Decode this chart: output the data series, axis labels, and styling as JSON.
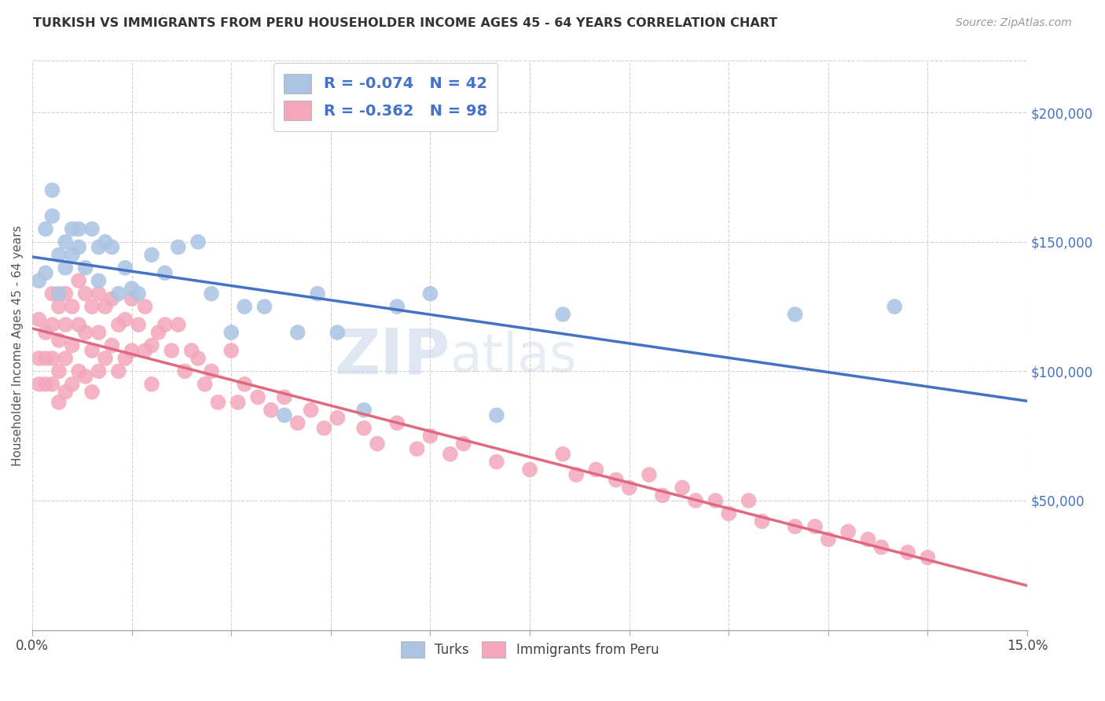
{
  "title": "TURKISH VS IMMIGRANTS FROM PERU HOUSEHOLDER INCOME AGES 45 - 64 YEARS CORRELATION CHART",
  "source": "Source: ZipAtlas.com",
  "ylabel": "Householder Income Ages 45 - 64 years",
  "ytick_values": [
    50000,
    100000,
    150000,
    200000
  ],
  "legend_turks_r": "-0.074",
  "legend_turks_n": "42",
  "legend_peru_r": "-0.362",
  "legend_peru_n": "98",
  "turks_color": "#aac4e2",
  "turks_line_color": "#4472c4",
  "peru_color": "#f4a7bc",
  "peru_line_color": "#e06880",
  "watermark": "ZIPatlas",
  "turks_label": "Turks",
  "peru_label": "Immigrants from Peru",
  "turks_x": [
    0.001,
    0.002,
    0.002,
    0.003,
    0.003,
    0.004,
    0.004,
    0.005,
    0.005,
    0.006,
    0.006,
    0.007,
    0.007,
    0.008,
    0.009,
    0.01,
    0.01,
    0.011,
    0.012,
    0.013,
    0.014,
    0.015,
    0.016,
    0.018,
    0.02,
    0.022,
    0.025,
    0.027,
    0.03,
    0.032,
    0.035,
    0.038,
    0.04,
    0.043,
    0.046,
    0.05,
    0.055,
    0.06,
    0.07,
    0.08,
    0.115,
    0.13
  ],
  "turks_y": [
    135000,
    155000,
    138000,
    160000,
    170000,
    145000,
    130000,
    150000,
    140000,
    155000,
    145000,
    155000,
    148000,
    140000,
    155000,
    148000,
    135000,
    150000,
    148000,
    130000,
    140000,
    132000,
    130000,
    145000,
    138000,
    148000,
    150000,
    130000,
    115000,
    125000,
    125000,
    83000,
    115000,
    130000,
    115000,
    85000,
    125000,
    130000,
    83000,
    122000,
    122000,
    125000
  ],
  "peru_x": [
    0.001,
    0.001,
    0.001,
    0.002,
    0.002,
    0.002,
    0.003,
    0.003,
    0.003,
    0.003,
    0.004,
    0.004,
    0.004,
    0.004,
    0.005,
    0.005,
    0.005,
    0.005,
    0.006,
    0.006,
    0.006,
    0.007,
    0.007,
    0.007,
    0.008,
    0.008,
    0.008,
    0.009,
    0.009,
    0.009,
    0.01,
    0.01,
    0.01,
    0.011,
    0.011,
    0.012,
    0.012,
    0.013,
    0.013,
    0.014,
    0.014,
    0.015,
    0.015,
    0.016,
    0.017,
    0.017,
    0.018,
    0.018,
    0.019,
    0.02,
    0.021,
    0.022,
    0.023,
    0.024,
    0.025,
    0.026,
    0.027,
    0.028,
    0.03,
    0.031,
    0.032,
    0.034,
    0.036,
    0.038,
    0.04,
    0.042,
    0.044,
    0.046,
    0.05,
    0.052,
    0.055,
    0.058,
    0.06,
    0.063,
    0.065,
    0.07,
    0.075,
    0.08,
    0.082,
    0.085,
    0.088,
    0.09,
    0.093,
    0.095,
    0.098,
    0.1,
    0.103,
    0.105,
    0.108,
    0.11,
    0.115,
    0.118,
    0.12,
    0.123,
    0.126,
    0.128,
    0.132,
    0.135
  ],
  "peru_y": [
    120000,
    105000,
    95000,
    115000,
    105000,
    95000,
    130000,
    118000,
    105000,
    95000,
    125000,
    112000,
    100000,
    88000,
    130000,
    118000,
    105000,
    92000,
    125000,
    110000,
    95000,
    135000,
    118000,
    100000,
    130000,
    115000,
    98000,
    125000,
    108000,
    92000,
    130000,
    115000,
    100000,
    125000,
    105000,
    128000,
    110000,
    118000,
    100000,
    120000,
    105000,
    128000,
    108000,
    118000,
    108000,
    125000,
    110000,
    95000,
    115000,
    118000,
    108000,
    118000,
    100000,
    108000,
    105000,
    95000,
    100000,
    88000,
    108000,
    88000,
    95000,
    90000,
    85000,
    90000,
    80000,
    85000,
    78000,
    82000,
    78000,
    72000,
    80000,
    70000,
    75000,
    68000,
    72000,
    65000,
    62000,
    68000,
    60000,
    62000,
    58000,
    55000,
    60000,
    52000,
    55000,
    50000,
    50000,
    45000,
    50000,
    42000,
    40000,
    40000,
    35000,
    38000,
    35000,
    32000,
    30000,
    28000
  ]
}
